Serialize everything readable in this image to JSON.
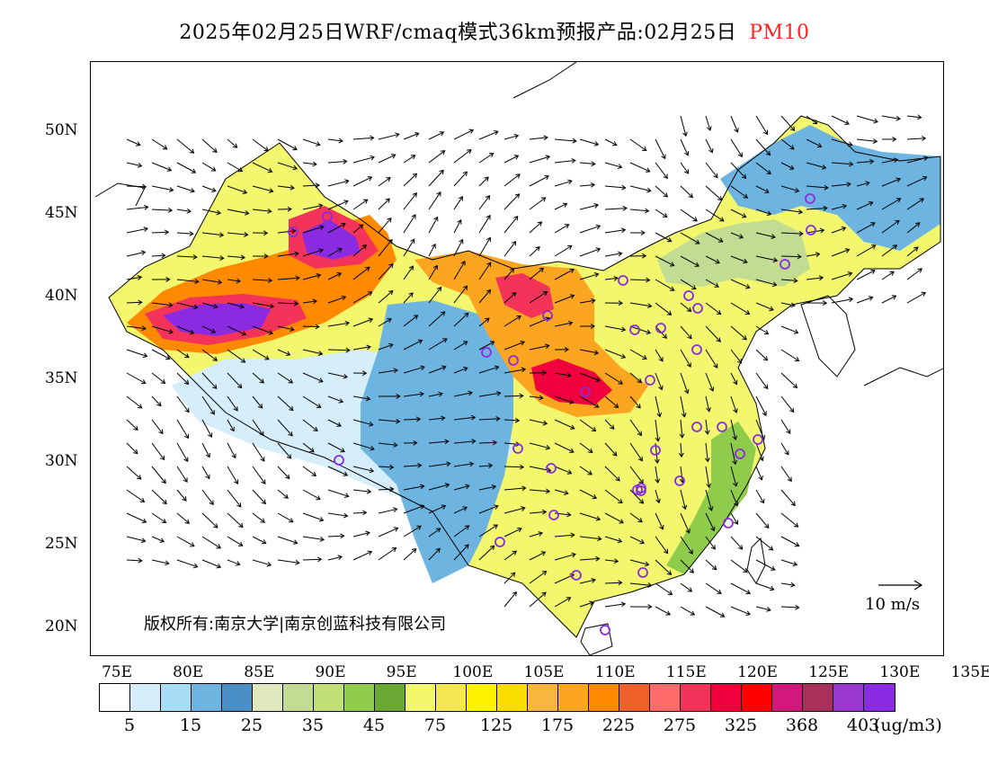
{
  "title": {
    "main": "2025年02月25日WRF/cmaq模式36km预报产品:02月25日",
    "pollutant": "PM10",
    "pollutant_color": "#ff2020"
  },
  "map": {
    "latitude_labels": [
      "50N",
      "45N",
      "40N",
      "35N",
      "30N",
      "25N",
      "20N"
    ],
    "longitude_labels": [
      "75E",
      "80E",
      "85E",
      "90E",
      "95E",
      "100E",
      "105E",
      "110E",
      "115E",
      "120E",
      "125E",
      "130E",
      "135E"
    ],
    "copyright": "版权所有:南京大学|南京创蓝科技有限公司",
    "wind_reference": "10 m/s",
    "monitoring_site_marker_color": "#8a2be2"
  },
  "colorbar": {
    "colors": [
      "#ffffff",
      "#d6eef9",
      "#a6dcf4",
      "#6db5e0",
      "#4a8fc6",
      "#dfe9bd",
      "#c2dc93",
      "#c0e075",
      "#8fcc4c",
      "#6aa833",
      "#f2f76d",
      "#f4e553",
      "#fff200",
      "#f9dc00",
      "#f8b640",
      "#fca520",
      "#ff8a00",
      "#f0602a",
      "#ff6a6a",
      "#f4335a",
      "#f0003c",
      "#ff0000",
      "#d2187a",
      "#a8305a",
      "#9a38d0",
      "#8a2be2"
    ],
    "labels": [
      "5",
      "15",
      "25",
      "35",
      "45",
      "75",
      "125",
      "175",
      "225",
      "275",
      "325",
      "368",
      "403"
    ],
    "unit": "(ug/m3)"
  }
}
